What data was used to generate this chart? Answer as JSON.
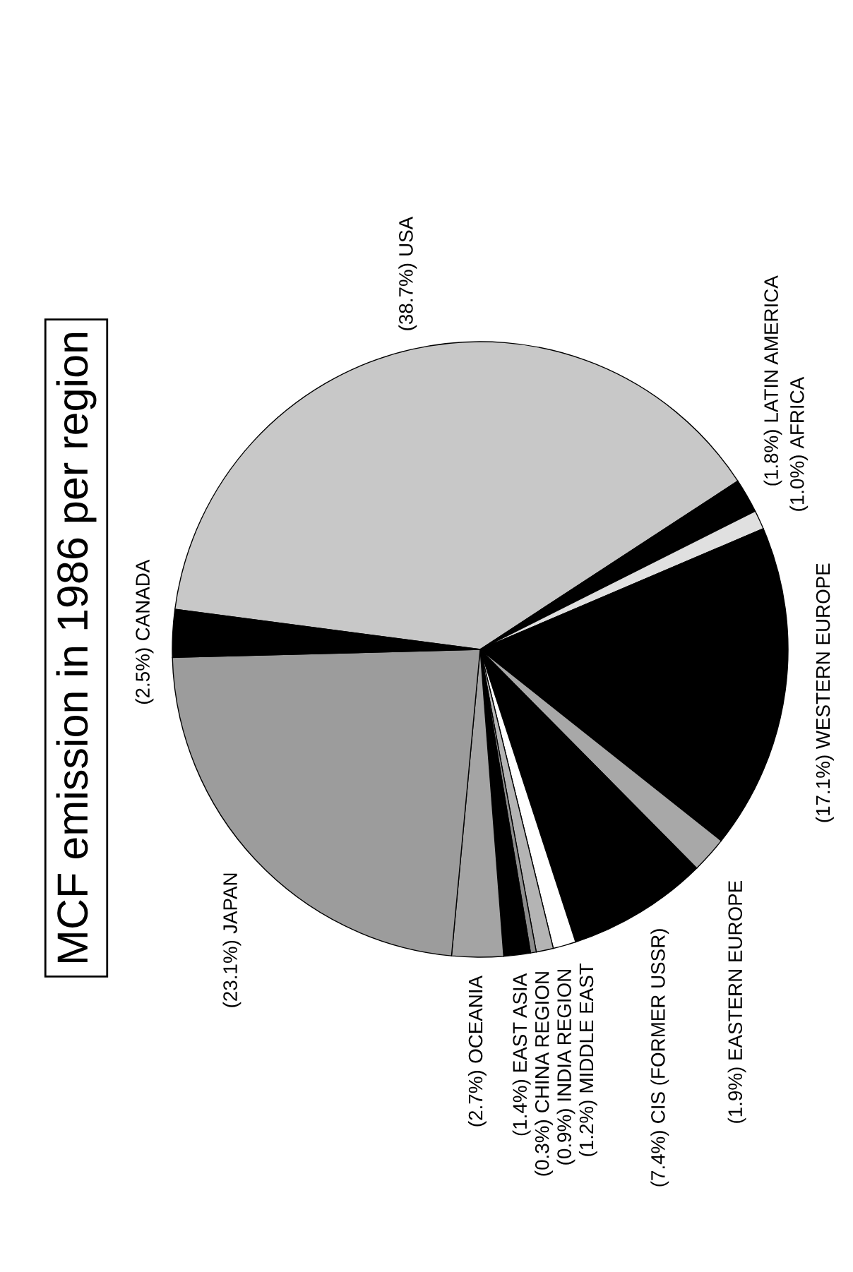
{
  "chart_data": {
    "type": "pie",
    "title": "MCF emission in 1986 per region",
    "categories": [
      "USA",
      "LATIN AMERICA",
      "AFRICA",
      "WESTERN EUROPE",
      "EASTERN EUROPE",
      "CIS (FORMER USSR)",
      "MIDDLE EAST",
      "INDIA REGION",
      "CHINA REGION",
      "EAST ASIA",
      "OCEANIA",
      "JAPAN",
      "CANADA"
    ],
    "values": [
      38.7,
      1.8,
      1.0,
      17.1,
      1.9,
      7.4,
      1.2,
      0.9,
      0.3,
      1.4,
      2.7,
      23.1,
      2.5
    ],
    "value_labels": [
      "(38.7%)",
      "(1.8%)",
      "(1.0%)",
      "(17.1%)",
      "(1.9%)",
      "(7.4%)",
      "(1.2%)",
      "(0.9%)",
      "(0.3%)",
      "(1.4%)",
      "(2.7%)",
      "(23.1%)",
      "(2.5%)"
    ],
    "colors": [
      "#c8c8c8",
      "#000000",
      "#e0e0e0",
      "#000000",
      "#a8a8a8",
      "#000000",
      "#ffffff",
      "#b4b4b4",
      "#8c8c8c",
      "#000000",
      "#a4a4a4",
      "#9c9c9c",
      "#000000"
    ]
  }
}
